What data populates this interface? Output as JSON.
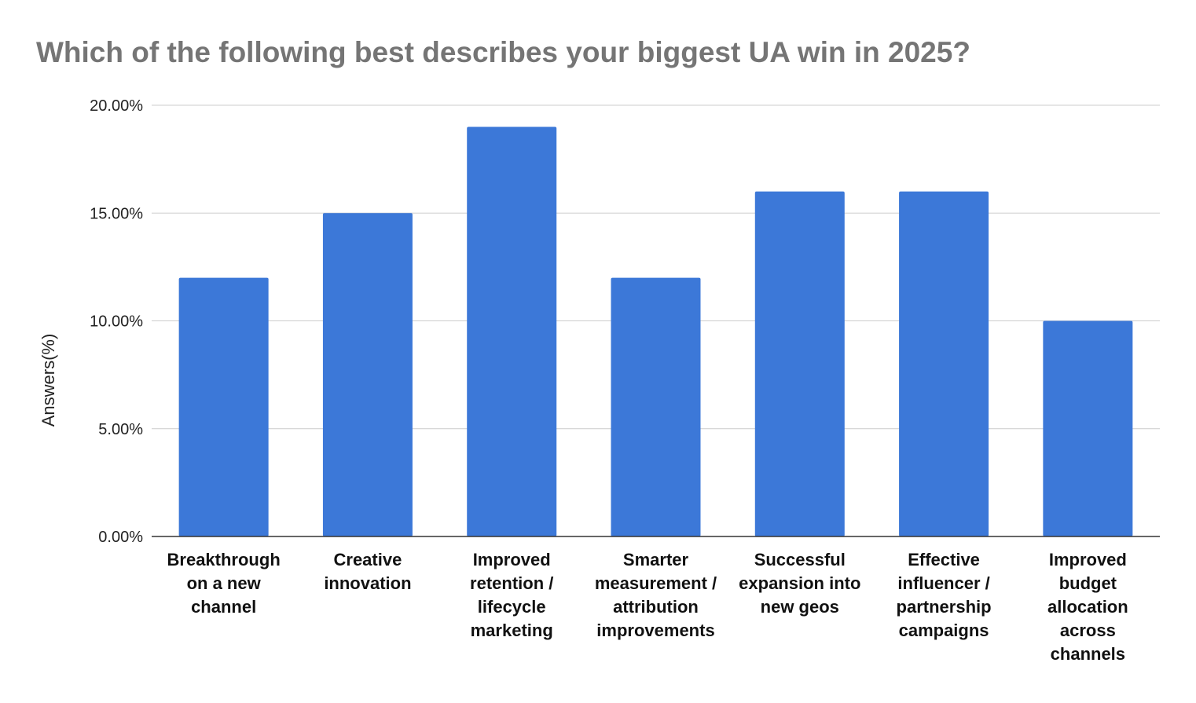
{
  "chart_data": {
    "type": "bar",
    "title": "Which of the following best describes your biggest UA win in 2025?",
    "xlabel": "",
    "ylabel": "Answers(%)",
    "ylim": [
      0,
      20
    ],
    "y_ticks": [
      0,
      5,
      10,
      15,
      20
    ],
    "y_tick_labels": [
      "0.00%",
      "5.00%",
      "10.00%",
      "15.00%",
      "20.00%"
    ],
    "grid": true,
    "legend": "none",
    "categories": [
      [
        "Breakthrough",
        "on a new",
        "channel"
      ],
      [
        "Creative",
        "innovation"
      ],
      [
        "Improved",
        "retention /",
        "lifecycle",
        "marketing"
      ],
      [
        "Smarter",
        "measurement /",
        "attribution",
        "improvements"
      ],
      [
        "Successful",
        "expansion into",
        "new geos"
      ],
      [
        "Effective",
        "influencer /",
        "partnership",
        "campaigns"
      ],
      [
        "Improved",
        "budget",
        "allocation",
        "across",
        "channels"
      ]
    ],
    "series": [
      {
        "name": "Answers(%)",
        "color": "#3c78d8",
        "values": [
          12,
          15,
          19,
          12,
          16,
          16,
          10
        ]
      }
    ]
  }
}
